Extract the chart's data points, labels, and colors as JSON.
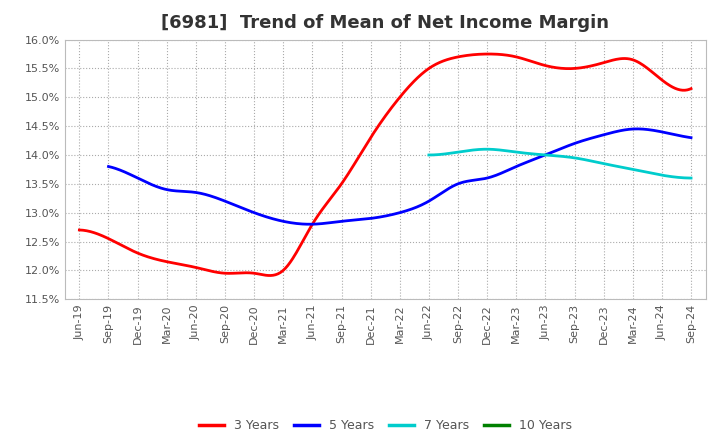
{
  "title": "[6981]  Trend of Mean of Net Income Margin",
  "background_color": "#ffffff",
  "plot_background_color": "#ffffff",
  "grid_color": "#aaaaaa",
  "ylim": [
    11.5,
    16.0
  ],
  "yticks": [
    11.5,
    12.0,
    12.5,
    13.0,
    13.5,
    14.0,
    14.5,
    15.0,
    15.5,
    16.0
  ],
  "x_labels": [
    "Jun-19",
    "Sep-19",
    "Dec-19",
    "Mar-20",
    "Jun-20",
    "Sep-20",
    "Dec-20",
    "Mar-21",
    "Jun-21",
    "Sep-21",
    "Dec-21",
    "Mar-22",
    "Jun-22",
    "Sep-22",
    "Dec-22",
    "Mar-23",
    "Jun-23",
    "Sep-23",
    "Dec-23",
    "Mar-24",
    "Jun-24",
    "Sep-24"
  ],
  "series": {
    "3 Years": {
      "color": "#ff0000",
      "values": [
        12.7,
        12.55,
        12.3,
        12.15,
        12.05,
        11.95,
        11.95,
        12.0,
        12.8,
        13.5,
        14.3,
        15.0,
        15.5,
        15.7,
        15.75,
        15.7,
        15.55,
        15.5,
        15.6,
        15.65,
        15.3,
        15.15
      ]
    },
    "5 Years": {
      "color": "#0000ff",
      "values": [
        null,
        13.8,
        13.6,
        13.4,
        13.35,
        13.2,
        13.0,
        12.85,
        12.8,
        12.85,
        12.9,
        13.0,
        13.2,
        13.5,
        13.6,
        13.8,
        14.0,
        14.2,
        14.35,
        14.45,
        14.4,
        14.3
      ]
    },
    "7 Years": {
      "color": "#00cccc",
      "values": [
        null,
        null,
        null,
        null,
        null,
        null,
        null,
        null,
        null,
        null,
        null,
        null,
        14.0,
        14.05,
        14.1,
        14.05,
        14.0,
        13.95,
        13.85,
        13.75,
        13.65,
        13.6
      ]
    },
    "10 Years": {
      "color": "#008000",
      "values": [
        null,
        null,
        null,
        null,
        null,
        null,
        null,
        null,
        null,
        null,
        null,
        null,
        null,
        null,
        null,
        null,
        null,
        null,
        null,
        null,
        null,
        null
      ]
    }
  },
  "legend": {
    "labels": [
      "3 Years",
      "5 Years",
      "7 Years",
      "10 Years"
    ],
    "colors": [
      "#ff0000",
      "#0000ff",
      "#00cccc",
      "#008000"
    ]
  },
  "title_fontsize": 13,
  "tick_fontsize": 8,
  "legend_fontsize": 9
}
